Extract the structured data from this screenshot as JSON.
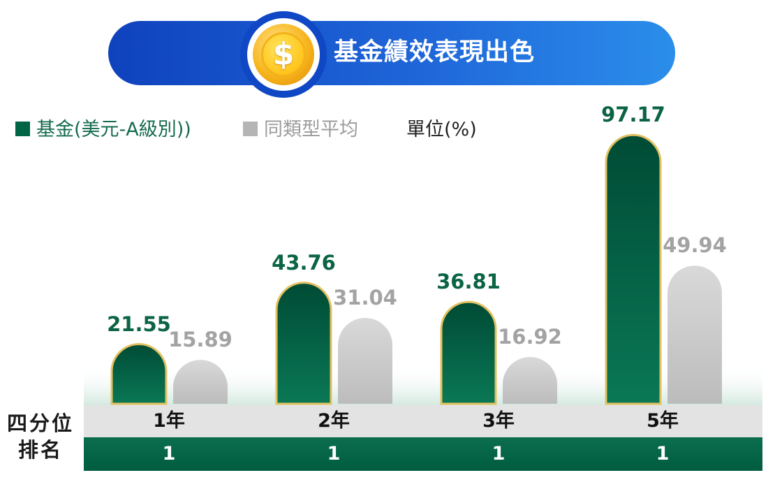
{
  "banner": {
    "title": "基金績效表現出色",
    "coin_symbol": "$"
  },
  "legend": {
    "fund": "基金(美元-A級別))",
    "average": "同類型平均",
    "unit": "單位(%)"
  },
  "colors": {
    "fund_top": "#004b35",
    "fund_bottom": "#0a7855",
    "fund_border": "#e3c161",
    "fund_label": "#0b6443",
    "avg_top": "#d9d9d9",
    "avg_bottom": "#bdbdbd",
    "avg_label": "#a3a3a3",
    "banner": "#1f66d9"
  },
  "chart_data": {
    "type": "bar",
    "categories": [
      "1年",
      "2年",
      "3年",
      "5年"
    ],
    "series": [
      {
        "name": "基金(美元-A級別))",
        "values": [
          21.55,
          43.76,
          36.81,
          97.17
        ]
      },
      {
        "name": "同類型平均",
        "values": [
          15.89,
          31.04,
          16.92,
          49.94
        ]
      }
    ],
    "ylabel": "單位(%)",
    "ylim": [
      0,
      100
    ],
    "grid": false,
    "legend_position": "top-left"
  },
  "table": {
    "row_label": [
      "四分位",
      "排名"
    ],
    "years": [
      "1年",
      "2年",
      "3年",
      "5年"
    ],
    "ranks": [
      "1",
      "1",
      "1",
      "1"
    ]
  }
}
